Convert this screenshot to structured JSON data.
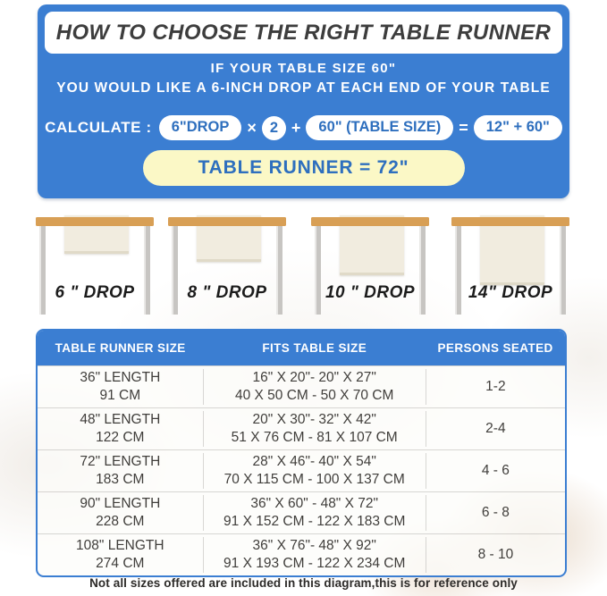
{
  "colors": {
    "panel_blue": "#3b7ed2",
    "pill_text_blue": "#2e6fbe",
    "result_yellow": "#fbf8c6",
    "tabletop_tan": "#d89f55",
    "runner_cream": "#f1ecdf"
  },
  "header": {
    "title": "HOW TO CHOOSE THE RIGHT TABLE RUNNER"
  },
  "intro": {
    "line1": "IF YOUR TABLE SIZE 60\"",
    "line2": "YOU WOULD LIKE A 6-INCH DROP AT EACH END OF YOUR TABLE"
  },
  "calculation": {
    "label": "CALCULATE :",
    "pill_drop": "6\"DROP",
    "op_times": "×",
    "multiplier": "2",
    "op_plus": "+",
    "pill_table_size": "60\" (TABLE SIZE)",
    "op_equals": "=",
    "pill_result": "12\" + 60\"",
    "result_banner": "TABLE RUNNER = 72\""
  },
  "drops": [
    {
      "label": "6 \" DROP"
    },
    {
      "label": "8 \" DROP"
    },
    {
      "label": "10 \" DROP"
    },
    {
      "label": "14\" DROP"
    }
  ],
  "size_table": {
    "headers": [
      "TABLE RUNNER SIZE",
      "FITS TABLE SIZE",
      "PERSONS SEATED"
    ],
    "rows": [
      {
        "length_in": "36\" LENGTH",
        "length_cm": "91 CM",
        "fits_in": "16\" X 20\"- 20\" X 27\"",
        "fits_cm": "40 X 50 CM - 50 X 70 CM",
        "persons": "1-2"
      },
      {
        "length_in": "48\" LENGTH",
        "length_cm": "122 CM",
        "fits_in": "20\" X 30\"- 32\" X 42\"",
        "fits_cm": "51 X 76 CM - 81 X 107 CM",
        "persons": "2-4"
      },
      {
        "length_in": "72\" LENGTH",
        "length_cm": "183 CM",
        "fits_in": "28\" X 46\"- 40\" X 54\"",
        "fits_cm": "70 X 115 CM - 100 X 137 CM",
        "persons": "4 - 6"
      },
      {
        "length_in": "90\" LENGTH",
        "length_cm": "228 CM",
        "fits_in": "36\" X 60\" - 48\" X 72\"",
        "fits_cm": "91 X 152 CM - 122 X 183 CM",
        "persons": "6 - 8"
      },
      {
        "length_in": "108\" LENGTH",
        "length_cm": "274 CM",
        "fits_in": "36\" X 76\"- 48\" X 92\"",
        "fits_cm": "91 X 193 CM - 122 X 234 CM",
        "persons": "8 - 10"
      }
    ]
  },
  "footnote": "Not all sizes offered are included in this diagram,this is for reference only"
}
